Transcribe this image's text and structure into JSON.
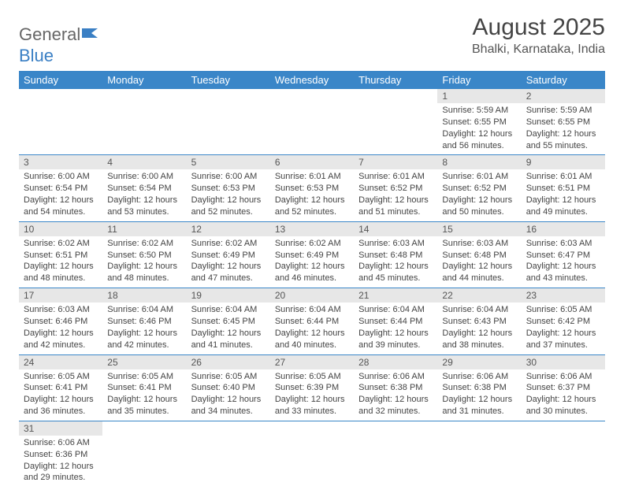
{
  "logo": {
    "text1": "General",
    "text2": "Blue"
  },
  "title": "August 2025",
  "subtitle": "Bhalki, Karnataka, India",
  "colors": {
    "header_bg": "#3a86c8",
    "header_text": "#ffffff",
    "daynum_bg": "#e7e7e7",
    "border": "#3a86c8",
    "logo_blue": "#3a7fc4",
    "text": "#444444"
  },
  "weekdays": [
    "Sunday",
    "Monday",
    "Tuesday",
    "Wednesday",
    "Thursday",
    "Friday",
    "Saturday"
  ],
  "weeks": [
    [
      null,
      null,
      null,
      null,
      null,
      {
        "n": "1",
        "sr": "Sunrise: 5:59 AM",
        "ss": "Sunset: 6:55 PM",
        "d1": "Daylight: 12 hours",
        "d2": "and 56 minutes."
      },
      {
        "n": "2",
        "sr": "Sunrise: 5:59 AM",
        "ss": "Sunset: 6:55 PM",
        "d1": "Daylight: 12 hours",
        "d2": "and 55 minutes."
      }
    ],
    [
      {
        "n": "3",
        "sr": "Sunrise: 6:00 AM",
        "ss": "Sunset: 6:54 PM",
        "d1": "Daylight: 12 hours",
        "d2": "and 54 minutes."
      },
      {
        "n": "4",
        "sr": "Sunrise: 6:00 AM",
        "ss": "Sunset: 6:54 PM",
        "d1": "Daylight: 12 hours",
        "d2": "and 53 minutes."
      },
      {
        "n": "5",
        "sr": "Sunrise: 6:00 AM",
        "ss": "Sunset: 6:53 PM",
        "d1": "Daylight: 12 hours",
        "d2": "and 52 minutes."
      },
      {
        "n": "6",
        "sr": "Sunrise: 6:01 AM",
        "ss": "Sunset: 6:53 PM",
        "d1": "Daylight: 12 hours",
        "d2": "and 52 minutes."
      },
      {
        "n": "7",
        "sr": "Sunrise: 6:01 AM",
        "ss": "Sunset: 6:52 PM",
        "d1": "Daylight: 12 hours",
        "d2": "and 51 minutes."
      },
      {
        "n": "8",
        "sr": "Sunrise: 6:01 AM",
        "ss": "Sunset: 6:52 PM",
        "d1": "Daylight: 12 hours",
        "d2": "and 50 minutes."
      },
      {
        "n": "9",
        "sr": "Sunrise: 6:01 AM",
        "ss": "Sunset: 6:51 PM",
        "d1": "Daylight: 12 hours",
        "d2": "and 49 minutes."
      }
    ],
    [
      {
        "n": "10",
        "sr": "Sunrise: 6:02 AM",
        "ss": "Sunset: 6:51 PM",
        "d1": "Daylight: 12 hours",
        "d2": "and 48 minutes."
      },
      {
        "n": "11",
        "sr": "Sunrise: 6:02 AM",
        "ss": "Sunset: 6:50 PM",
        "d1": "Daylight: 12 hours",
        "d2": "and 48 minutes."
      },
      {
        "n": "12",
        "sr": "Sunrise: 6:02 AM",
        "ss": "Sunset: 6:49 PM",
        "d1": "Daylight: 12 hours",
        "d2": "and 47 minutes."
      },
      {
        "n": "13",
        "sr": "Sunrise: 6:02 AM",
        "ss": "Sunset: 6:49 PM",
        "d1": "Daylight: 12 hours",
        "d2": "and 46 minutes."
      },
      {
        "n": "14",
        "sr": "Sunrise: 6:03 AM",
        "ss": "Sunset: 6:48 PM",
        "d1": "Daylight: 12 hours",
        "d2": "and 45 minutes."
      },
      {
        "n": "15",
        "sr": "Sunrise: 6:03 AM",
        "ss": "Sunset: 6:48 PM",
        "d1": "Daylight: 12 hours",
        "d2": "and 44 minutes."
      },
      {
        "n": "16",
        "sr": "Sunrise: 6:03 AM",
        "ss": "Sunset: 6:47 PM",
        "d1": "Daylight: 12 hours",
        "d2": "and 43 minutes."
      }
    ],
    [
      {
        "n": "17",
        "sr": "Sunrise: 6:03 AM",
        "ss": "Sunset: 6:46 PM",
        "d1": "Daylight: 12 hours",
        "d2": "and 42 minutes."
      },
      {
        "n": "18",
        "sr": "Sunrise: 6:04 AM",
        "ss": "Sunset: 6:46 PM",
        "d1": "Daylight: 12 hours",
        "d2": "and 42 minutes."
      },
      {
        "n": "19",
        "sr": "Sunrise: 6:04 AM",
        "ss": "Sunset: 6:45 PM",
        "d1": "Daylight: 12 hours",
        "d2": "and 41 minutes."
      },
      {
        "n": "20",
        "sr": "Sunrise: 6:04 AM",
        "ss": "Sunset: 6:44 PM",
        "d1": "Daylight: 12 hours",
        "d2": "and 40 minutes."
      },
      {
        "n": "21",
        "sr": "Sunrise: 6:04 AM",
        "ss": "Sunset: 6:44 PM",
        "d1": "Daylight: 12 hours",
        "d2": "and 39 minutes."
      },
      {
        "n": "22",
        "sr": "Sunrise: 6:04 AM",
        "ss": "Sunset: 6:43 PM",
        "d1": "Daylight: 12 hours",
        "d2": "and 38 minutes."
      },
      {
        "n": "23",
        "sr": "Sunrise: 6:05 AM",
        "ss": "Sunset: 6:42 PM",
        "d1": "Daylight: 12 hours",
        "d2": "and 37 minutes."
      }
    ],
    [
      {
        "n": "24",
        "sr": "Sunrise: 6:05 AM",
        "ss": "Sunset: 6:41 PM",
        "d1": "Daylight: 12 hours",
        "d2": "and 36 minutes."
      },
      {
        "n": "25",
        "sr": "Sunrise: 6:05 AM",
        "ss": "Sunset: 6:41 PM",
        "d1": "Daylight: 12 hours",
        "d2": "and 35 minutes."
      },
      {
        "n": "26",
        "sr": "Sunrise: 6:05 AM",
        "ss": "Sunset: 6:40 PM",
        "d1": "Daylight: 12 hours",
        "d2": "and 34 minutes."
      },
      {
        "n": "27",
        "sr": "Sunrise: 6:05 AM",
        "ss": "Sunset: 6:39 PM",
        "d1": "Daylight: 12 hours",
        "d2": "and 33 minutes."
      },
      {
        "n": "28",
        "sr": "Sunrise: 6:06 AM",
        "ss": "Sunset: 6:38 PM",
        "d1": "Daylight: 12 hours",
        "d2": "and 32 minutes."
      },
      {
        "n": "29",
        "sr": "Sunrise: 6:06 AM",
        "ss": "Sunset: 6:38 PM",
        "d1": "Daylight: 12 hours",
        "d2": "and 31 minutes."
      },
      {
        "n": "30",
        "sr": "Sunrise: 6:06 AM",
        "ss": "Sunset: 6:37 PM",
        "d1": "Daylight: 12 hours",
        "d2": "and 30 minutes."
      }
    ],
    [
      {
        "n": "31",
        "sr": "Sunrise: 6:06 AM",
        "ss": "Sunset: 6:36 PM",
        "d1": "Daylight: 12 hours",
        "d2": "and 29 minutes."
      },
      null,
      null,
      null,
      null,
      null,
      null
    ]
  ]
}
